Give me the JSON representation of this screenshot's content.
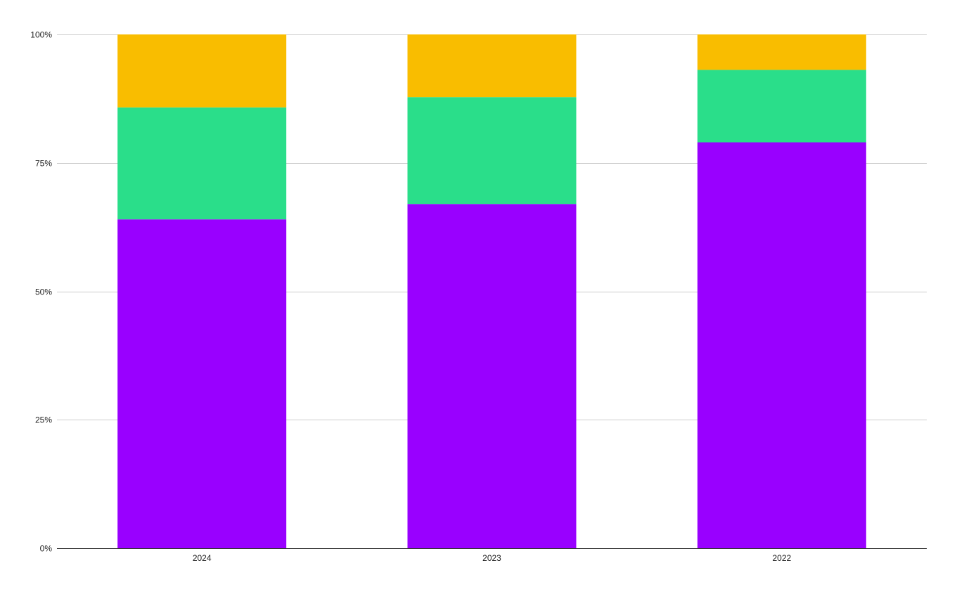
{
  "chart_data": {
    "type": "bar",
    "stacked": true,
    "normalized": true,
    "categories": [
      "2024",
      "2023",
      "2022"
    ],
    "series": [
      {
        "color": "#9900ff",
        "values": [
          64.0,
          67.0,
          79.0
        ]
      },
      {
        "color": "#2ade8a",
        "values": [
          21.8,
          20.8,
          14.1
        ]
      },
      {
        "color": "#f9bd00",
        "values": [
          14.2,
          12.2,
          6.9
        ]
      }
    ],
    "y_ticks": [
      {
        "value": 0,
        "label": "0%"
      },
      {
        "value": 25,
        "label": "25%"
      },
      {
        "value": 50,
        "label": "50%"
      },
      {
        "value": 75,
        "label": "75%"
      },
      {
        "value": 100,
        "label": "100%"
      }
    ],
    "ylim": [
      0,
      100
    ],
    "title": "",
    "xlabel": "",
    "ylabel": "",
    "grid": true,
    "legend": "none",
    "gridline_color": "#cccccc",
    "axis_color": "#333333"
  }
}
